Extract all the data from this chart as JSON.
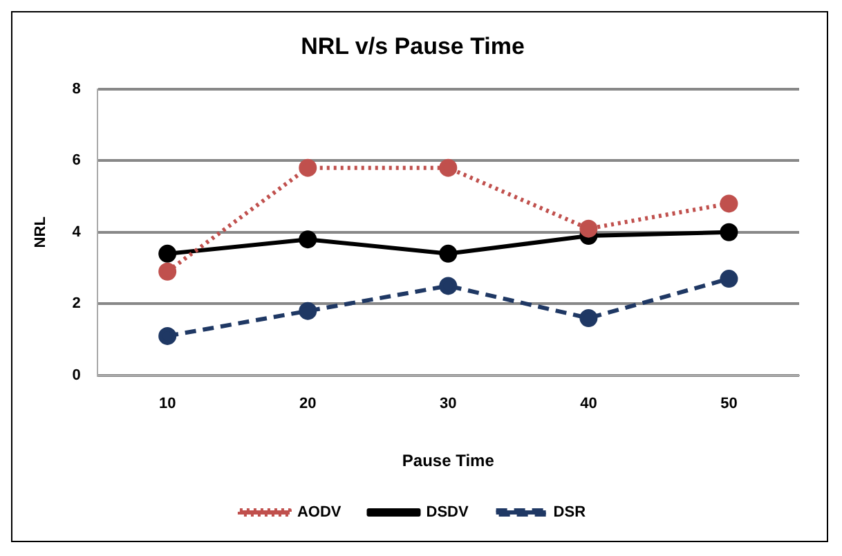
{
  "chart_data": {
    "type": "line",
    "title": "NRL v/s Pause Time",
    "xlabel": "Pause Time",
    "ylabel": "NRL",
    "categories": [
      "10",
      "20",
      "30",
      "40",
      "50"
    ],
    "series": [
      {
        "name": "AODV",
        "color": "#c0504d",
        "line_style": "dotted",
        "values": [
          2.9,
          5.8,
          5.8,
          4.1,
          4.8
        ]
      },
      {
        "name": "DSDV",
        "color": "#000000",
        "line_style": "solid",
        "values": [
          3.4,
          3.8,
          3.4,
          3.9,
          4.0
        ]
      },
      {
        "name": "DSR",
        "color": "#1f3864",
        "line_style": "dashed",
        "values": [
          1.1,
          1.8,
          2.5,
          1.6,
          2.7
        ]
      }
    ],
    "ylim": [
      0,
      8
    ],
    "yticks": [
      0,
      2,
      4,
      6,
      8
    ],
    "grid": "y",
    "legend": "bottom",
    "marker": "circle"
  }
}
